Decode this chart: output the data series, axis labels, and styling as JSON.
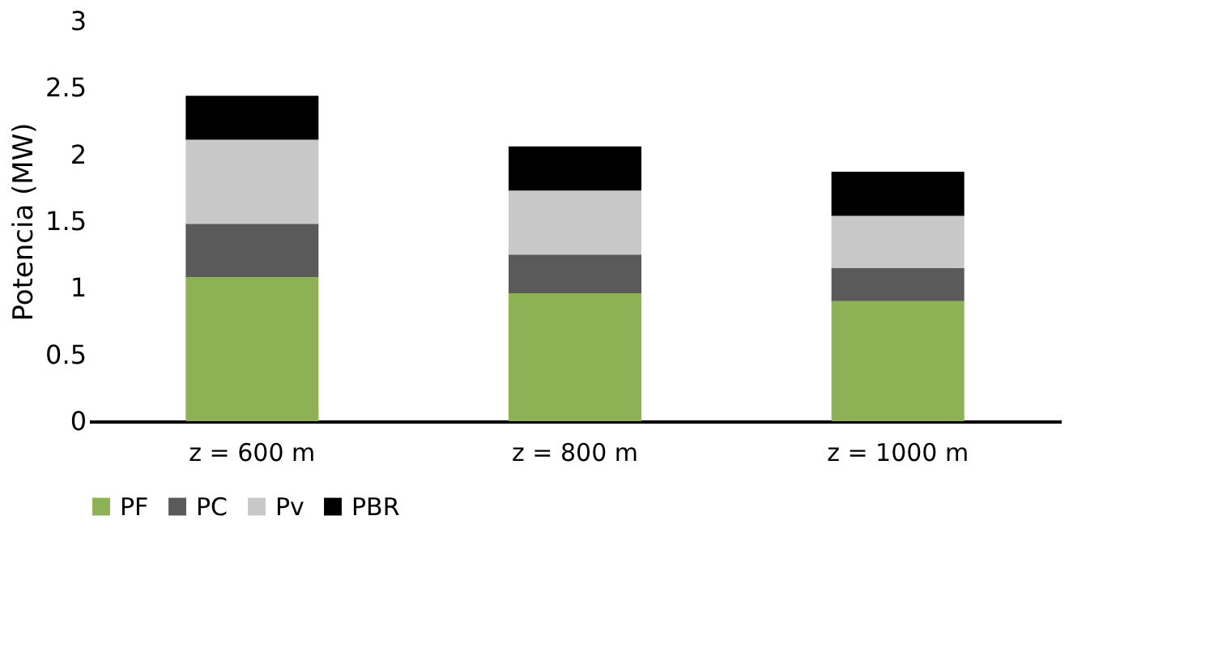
{
  "chart_data": {
    "type": "bar",
    "stacked": true,
    "ylabel": "Potencia (MW)",
    "categories": [
      "z = 600 m",
      "z = 800 m",
      "z = 1000 m"
    ],
    "series": [
      {
        "name": "PF",
        "color": "#8db255",
        "values": [
          1.08,
          0.96,
          0.9
        ]
      },
      {
        "name": "PC",
        "color": "#5a5a5a",
        "values": [
          0.4,
          0.29,
          0.25
        ]
      },
      {
        "name": "Pv",
        "color": "#c8c8c8",
        "values": [
          0.63,
          0.48,
          0.39
        ]
      },
      {
        "name": "PBR",
        "color": "#000000",
        "values": [
          0.33,
          0.33,
          0.33
        ]
      }
    ],
    "ylim": [
      0,
      3
    ],
    "yticks": [
      0,
      0.5,
      1,
      1.5,
      2,
      2.5,
      3
    ],
    "grid": false,
    "legend": "bottom"
  }
}
